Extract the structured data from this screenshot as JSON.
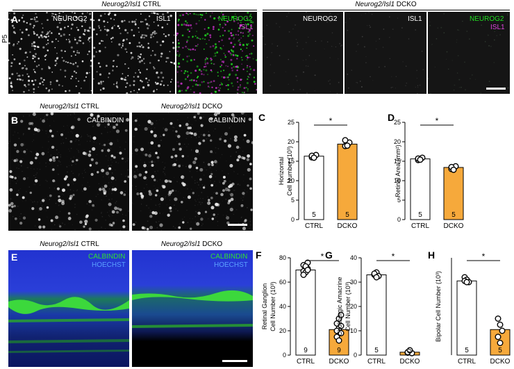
{
  "colors": {
    "neurog2": "#22dd22",
    "isl1": "#cc33cc",
    "hoechst": "#2b3bd8",
    "calbindin": "#30e030",
    "dcko_bar": "#f6a93b",
    "ctrl_bar": "#ffffff"
  },
  "row_a": {
    "label": "A",
    "age": "P5",
    "ctrl_header_gene": "Neurog2/Isl1",
    "ctrl_header_suffix": " CTRL",
    "dcko_header_gene": "Neurog2/Isl1",
    "dcko_header_suffix": " DCKO",
    "ch1": "NEUROG2",
    "ch2": "ISL1",
    "merge1": "NEUROG2",
    "merge2": "ISL1"
  },
  "row_b": {
    "label": "B",
    "ctrl_header_gene": "Neurog2/Isl1",
    "ctrl_header_suffix": " CTRL",
    "dcko_header_gene": "Neurog2/Isl1",
    "dcko_header_suffix": " DCKO",
    "stain": "CALBINDIN"
  },
  "row_e": {
    "label": "E",
    "ctrl_header_gene": "Neurog2/Isl1",
    "ctrl_header_suffix": " CTRL",
    "dcko_header_gene": "Neurog2/Isl1",
    "dcko_header_suffix": " DCKO",
    "stain1": "CALBINDIN",
    "stain2": "HOECHST"
  },
  "chart_data": [
    {
      "id": "C",
      "type": "bar",
      "label": "C",
      "categories": [
        "CTRL",
        "DCKO"
      ],
      "values": [
        16.3,
        19.4
      ],
      "points": [
        [
          16.0,
          16.3,
          16.6,
          16.4,
          15.9
        ],
        [
          18.9,
          19.3,
          19.8,
          20.4,
          19.0
        ]
      ],
      "n": [
        "5",
        "5"
      ],
      "ylabel_line1": "Horizontal",
      "ylabel_line2": "Cell Number (10³)",
      "ylim": [
        0,
        25
      ],
      "yticks": [
        0,
        5,
        10,
        15,
        20,
        25
      ],
      "significance": "*"
    },
    {
      "id": "D",
      "type": "bar",
      "label": "D",
      "categories": [
        "CTRL",
        "DCKO"
      ],
      "values": [
        15.6,
        13.4
      ],
      "points": [
        [
          15.3,
          15.6,
          15.9,
          15.7,
          15.4
        ],
        [
          13.0,
          13.3,
          13.7,
          13.5,
          12.8
        ]
      ],
      "n": [
        "5",
        "5"
      ],
      "ylabel_line1": "Retinal Area (mm²)",
      "ylabel_line2": "",
      "ylim": [
        0,
        25
      ],
      "yticks": [
        0,
        5,
        10,
        15,
        20,
        25
      ],
      "significance": "*"
    },
    {
      "id": "F",
      "type": "bar",
      "label": "F",
      "categories": [
        "CTRL",
        "DCKO"
      ],
      "values": [
        70,
        21
      ],
      "points": [
        [
          74,
          72,
          71,
          69,
          68,
          76,
          66,
          73,
          70
        ],
        [
          26,
          22,
          18,
          15,
          12,
          24,
          20,
          30,
          33
        ]
      ],
      "n": [
        "9",
        "9"
      ],
      "ylabel_line1": "Retinal Ganglion",
      "ylabel_line2": "Cell Number (10³)",
      "ylim": [
        0,
        80
      ],
      "yticks": [
        0,
        20,
        40,
        60,
        80
      ],
      "significance": "*"
    },
    {
      "id": "G",
      "type": "bar",
      "label": "G",
      "categories": [
        "CTRL",
        "DCKO"
      ],
      "values": [
        33,
        1.2
      ],
      "points": [
        [
          33,
          34,
          32.5,
          33.5,
          32
        ],
        [
          1.0,
          1.5,
          0.8,
          1.2,
          2.0
        ]
      ],
      "n": [
        "5",
        "5"
      ],
      "ylabel_line1": "Cholinergic Amacrine",
      "ylabel_line2": "Cell Number (10³)",
      "ylim": [
        0,
        40
      ],
      "yticks": [
        0,
        10,
        20,
        30,
        40
      ],
      "significance": "*"
    },
    {
      "id": "H",
      "type": "bar",
      "label": "H",
      "categories": [
        "CTRL",
        "DCKO"
      ],
      "values": [
        61,
        21
      ],
      "points": [
        [
          64,
          62,
          60,
          61,
          60
        ],
        [
          30,
          25,
          20,
          15,
          10
        ]
      ],
      "n": [
        "5",
        "5"
      ],
      "ylabel_line1": "Bipolar Cell Number (10³)",
      "ylabel_line2": "",
      "ylim": [
        0,
        80
      ],
      "yticks": [],
      "significance": "*"
    }
  ]
}
